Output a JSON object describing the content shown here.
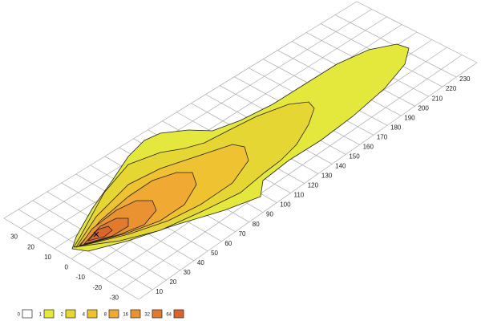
{
  "chart_data": {
    "type": "contour",
    "xlim": [
      0,
      245
    ],
    "ylim": [
      -40,
      40
    ],
    "xticks": [
      10,
      20,
      30,
      40,
      50,
      60,
      70,
      80,
      90,
      100,
      110,
      120,
      130,
      140,
      150,
      160,
      170,
      180,
      190,
      200,
      210,
      220,
      230
    ],
    "yticks": [
      -30,
      -20,
      -10,
      0,
      10,
      20,
      30
    ],
    "grid": true,
    "levels": [
      0,
      1,
      2,
      4,
      8,
      16,
      32,
      64
    ],
    "colors": [
      "#ffffff",
      "#e4e83c",
      "#e6d634",
      "#efc232",
      "#f0aa34",
      "#ea9232",
      "#e27a2e",
      "#d9652c"
    ]
  }
}
